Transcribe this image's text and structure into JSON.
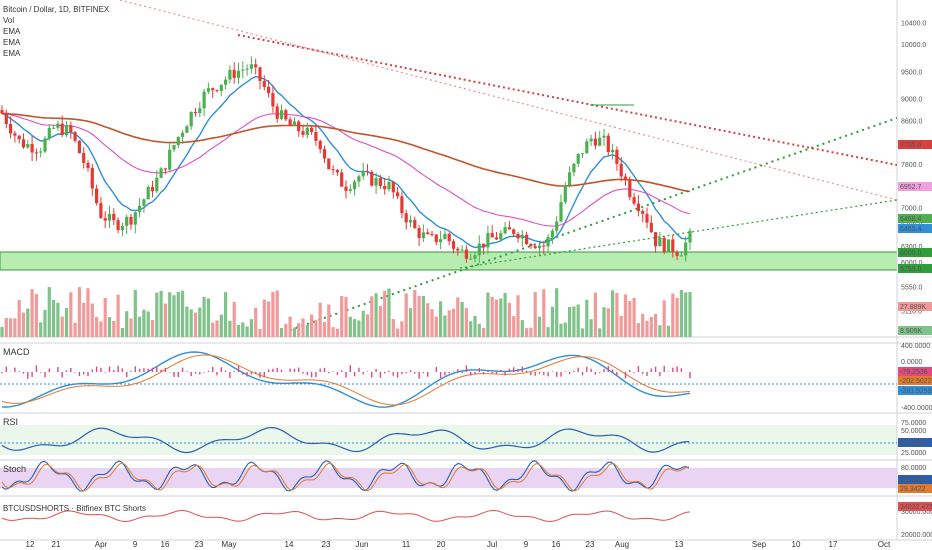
{
  "header": {
    "symbol": "Bitcoin / Dollar, 1D, BITFINEX",
    "legend_vol": "Vol",
    "legend_ema1": "EMA",
    "legend_ema2": "EMA",
    "legend_ema3": "EMA"
  },
  "panes": {
    "macd_title": "MACD",
    "rsi_title": "RSI",
    "stoch_title": "Stoch",
    "shorts_title": "BTCUSDSHORTS · Bitfinex BTC Shorts"
  },
  "colors": {
    "up": "#4caf50",
    "down": "#e53935",
    "ema_fast": "#2f8fd8",
    "ema_mid": "#e040c0",
    "ema_slow": "#c0542a",
    "support_zone": "#b8ecb0",
    "green_dotted": "#2e9e3a",
    "red_dotted": "#d84040"
  },
  "chart_data": [
    {
      "type": "candlestick",
      "pane": "price",
      "x_labels": [
        "12",
        "21",
        "Apr",
        "9",
        "16",
        "23",
        "May",
        "14",
        "23",
        "Jun",
        "11",
        "20",
        "Jul",
        "9",
        "16",
        "23",
        "Aug",
        "13",
        "Sep",
        "10",
        "17",
        "Oct"
      ],
      "y_ticks": [
        "10400.0",
        "10000.0",
        "9500.0",
        "9000.0",
        "8600.0",
        "8200.0",
        "7800.0",
        "7400.0",
        "7000.0",
        "6700.0",
        "6300.0",
        "6000.0",
        "5550.0",
        "5110.0"
      ],
      "ylim": [
        4800,
        10600
      ],
      "price_tags": [
        "7705.6",
        "6952.7",
        "6468.4",
        "6465.4",
        "6000.0",
        "5759.0"
      ],
      "support_zone": [
        5759,
        6000
      ],
      "last_close": 6468.4
    },
    {
      "type": "bar",
      "pane": "volume",
      "labels": [
        "27.889K",
        "8.909K"
      ]
    },
    {
      "type": "line",
      "pane": "macd",
      "y_ticks": [
        "400.0000",
        "0.0000",
        "-400.0000"
      ],
      "value_tags": [
        "-79.2536",
        "-202.5022",
        "-281.9259"
      ]
    },
    {
      "type": "line",
      "pane": "rsi",
      "y_ticks": [
        "75.0000",
        "50.0000",
        "25.0000"
      ],
      "value_tags": [
        "42.0334"
      ],
      "ylim": [
        0,
        100
      ]
    },
    {
      "type": "line",
      "pane": "stoch",
      "y_ticks": [
        "80.0000",
        "20.0000"
      ],
      "value_tags": [
        "36.4495",
        "29.3422"
      ],
      "ylim": [
        0,
        100
      ]
    },
    {
      "type": "line",
      "pane": "shorts",
      "y_ticks": [
        "30000.0000",
        "20000.0000"
      ],
      "value_tags": [
        "34032.4756"
      ]
    }
  ]
}
